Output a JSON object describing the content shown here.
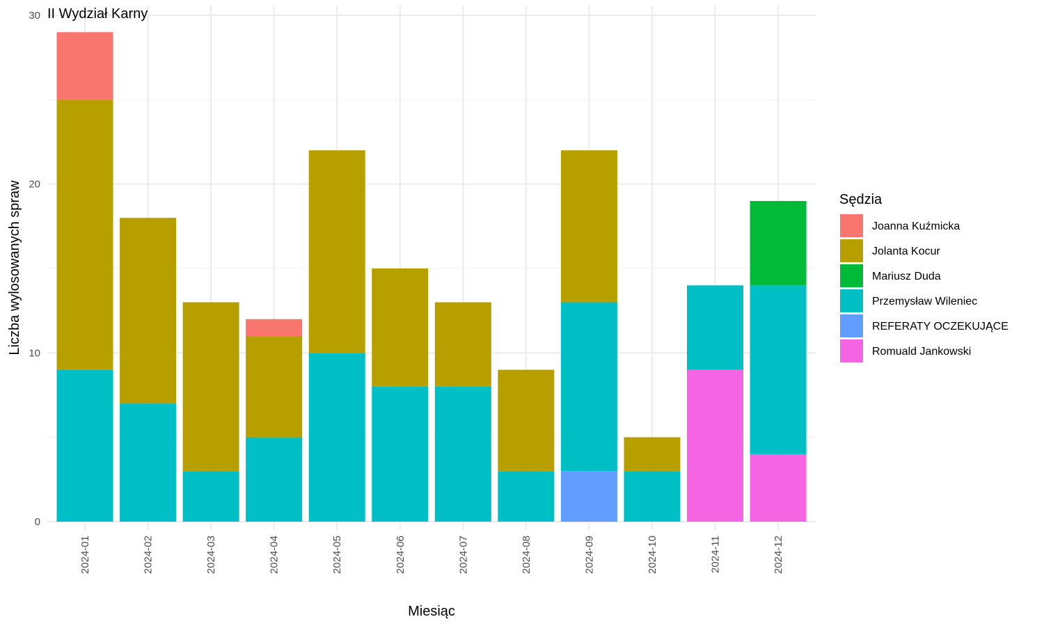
{
  "chart_data": {
    "type": "bar",
    "stacked": true,
    "title": "II Wydział Karny",
    "xlabel": "Miesiąc",
    "ylabel": "Liczba wylosowanych spraw",
    "ylim": [
      0,
      30
    ],
    "yticks": [
      0,
      10,
      20,
      30
    ],
    "grid": true,
    "legend_title": "Sędzia",
    "legend_position": "right",
    "categories": [
      "2024-01",
      "2024-02",
      "2024-03",
      "2024-04",
      "2024-05",
      "2024-06",
      "2024-07",
      "2024-08",
      "2024-09",
      "2024-10",
      "2024-11",
      "2024-12"
    ],
    "series": [
      {
        "name": "Joanna Kuźmicka",
        "color": "#F8766D",
        "values": [
          4,
          0,
          0,
          1,
          0,
          0,
          0,
          0,
          0,
          0,
          0,
          0
        ]
      },
      {
        "name": "Jolanta Kocur",
        "color": "#B79F00",
        "values": [
          16,
          11,
          10,
          6,
          12,
          7,
          5,
          6,
          9,
          2,
          0,
          0
        ]
      },
      {
        "name": "Mariusz Duda",
        "color": "#00BA38",
        "values": [
          0,
          0,
          0,
          0,
          0,
          0,
          0,
          0,
          0,
          0,
          0,
          5
        ]
      },
      {
        "name": "Przemysław Wileniec",
        "color": "#00BFC4",
        "values": [
          9,
          7,
          3,
          5,
          10,
          8,
          8,
          3,
          10,
          3,
          5,
          10
        ]
      },
      {
        "name": "REFERATY OCZEKUJĄCE",
        "color": "#619CFF",
        "values": [
          0,
          0,
          0,
          0,
          0,
          0,
          0,
          0,
          3,
          0,
          0,
          0
        ]
      },
      {
        "name": "Romuald Jankowski",
        "color": "#F564E3",
        "values": [
          0,
          0,
          0,
          0,
          0,
          0,
          0,
          0,
          0,
          0,
          9,
          4
        ]
      }
    ]
  }
}
